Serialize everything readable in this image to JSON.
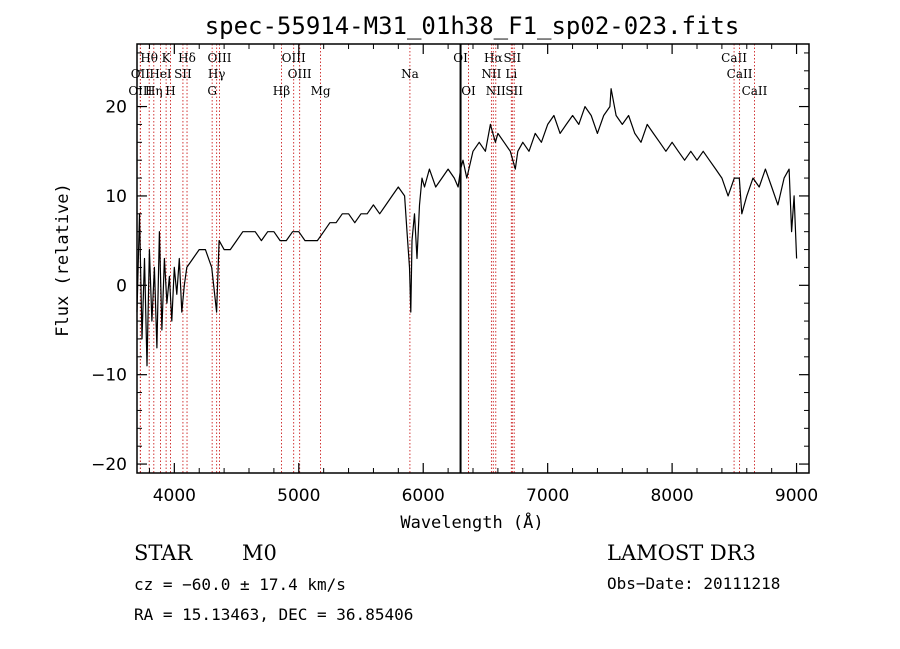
{
  "chart_data": {
    "type": "line",
    "title": "spec-55914-M31_01h38_F1_sp02-023.fits",
    "xlabel": "Wavelength (Å)",
    "ylabel": "Flux (relative)",
    "xlim": [
      3700,
      9100
    ],
    "ylim": [
      -21,
      27
    ],
    "xticks": [
      4000,
      5000,
      6000,
      7000,
      8000,
      9000
    ],
    "xtick_labels": [
      "4000",
      "5000",
      "6000",
      "7000",
      "8000",
      "9000"
    ],
    "yticks": [
      -20,
      -10,
      0,
      10,
      20
    ],
    "ytick_labels": [
      "−20",
      "−10",
      "0",
      "10",
      "20"
    ],
    "series": [
      {
        "name": "spectrum",
        "color": "#000000",
        "x": [
          3700,
          3720,
          3740,
          3760,
          3780,
          3800,
          3820,
          3840,
          3860,
          3880,
          3900,
          3920,
          3940,
          3960,
          3980,
          4000,
          4020,
          4040,
          4060,
          4080,
          4100,
          4150,
          4200,
          4250,
          4300,
          4340,
          4360,
          4400,
          4450,
          4500,
          4550,
          4600,
          4650,
          4700,
          4750,
          4800,
          4850,
          4900,
          4950,
          5000,
          5050,
          5100,
          5150,
          5200,
          5250,
          5300,
          5350,
          5400,
          5450,
          5500,
          5550,
          5600,
          5650,
          5700,
          5750,
          5800,
          5850,
          5870,
          5890,
          5900,
          5910,
          5930,
          5950,
          5970,
          5990,
          6010,
          6050,
          6100,
          6150,
          6200,
          6250,
          6280,
          6300,
          6320,
          6350,
          6400,
          6450,
          6500,
          6540,
          6560,
          6580,
          6600,
          6650,
          6700,
          6720,
          6740,
          6760,
          6800,
          6850,
          6900,
          6950,
          7000,
          7050,
          7100,
          7150,
          7200,
          7250,
          7300,
          7350,
          7400,
          7450,
          7500,
          7510,
          7550,
          7600,
          7650,
          7700,
          7750,
          7800,
          7850,
          7900,
          7950,
          8000,
          8050,
          8100,
          8150,
          8200,
          8250,
          8300,
          8350,
          8400,
          8450,
          8500,
          8540,
          8560,
          8600,
          8650,
          8700,
          8750,
          8800,
          8850,
          8900,
          8940,
          8960,
          8980,
          9000
        ],
        "y": [
          -3,
          8,
          -6,
          3,
          -9,
          4,
          -4,
          2,
          -7,
          6,
          -5,
          3,
          -2,
          1,
          -4,
          2,
          -1,
          3,
          -3,
          0,
          2,
          3,
          4,
          4,
          2,
          -3,
          5,
          4,
          4,
          5,
          6,
          6,
          6,
          5,
          6,
          6,
          5,
          5,
          6,
          6,
          5,
          5,
          5,
          6,
          7,
          7,
          8,
          8,
          7,
          8,
          8,
          9,
          8,
          9,
          10,
          11,
          10,
          6,
          2,
          -3,
          5,
          8,
          3,
          9,
          12,
          11,
          13,
          11,
          12,
          13,
          12,
          11,
          13,
          14,
          12,
          15,
          16,
          15,
          18,
          17,
          16,
          17,
          16,
          15,
          14,
          13,
          15,
          16,
          15,
          17,
          16,
          18,
          19,
          17,
          18,
          19,
          18,
          20,
          19,
          17,
          19,
          20,
          22,
          19,
          18,
          19,
          17,
          16,
          18,
          17,
          16,
          15,
          16,
          15,
          14,
          15,
          14,
          15,
          14,
          13,
          12,
          10,
          12,
          12,
          8,
          10,
          12,
          11,
          13,
          11,
          9,
          12,
          13,
          6,
          10,
          3
        ],
        "source_marker": "vertical line near 6300 Å"
      }
    ],
    "line_marks": [
      {
        "label": "Hθ",
        "x": 3798,
        "row": 1
      },
      {
        "label": "OII",
        "x": 3727,
        "row": 2
      },
      {
        "label": "OIII",
        "x": 3727,
        "row": 3
      },
      {
        "label": "K",
        "x": 3934,
        "row": 1
      },
      {
        "label": "HeI",
        "x": 3889,
        "row": 2
      },
      {
        "label": "Hη",
        "x": 3835,
        "row": 3
      },
      {
        "label": "Hδ",
        "x": 4102,
        "row": 1
      },
      {
        "label": "SII",
        "x": 4069,
        "row": 2
      },
      {
        "label": "H",
        "x": 3969,
        "row": 3
      },
      {
        "label": "OIII",
        "x": 4363,
        "row": 1
      },
      {
        "label": "Hγ",
        "x": 4340,
        "row": 2
      },
      {
        "label": "G",
        "x": 4304,
        "row": 3
      },
      {
        "label": "OIII",
        "x": 4959,
        "row": 1
      },
      {
        "label": "OIII",
        "x": 5007,
        "row": 2
      },
      {
        "label": "Hβ",
        "x": 4861,
        "row": 3
      },
      {
        "label": "Mg",
        "x": 5175,
        "row": 3
      },
      {
        "label": "Na",
        "x": 5893,
        "row": 2
      },
      {
        "label": "OI",
        "x": 6300,
        "row": 1
      },
      {
        "label": "OI",
        "x": 6364,
        "row": 3
      },
      {
        "label": "Hα",
        "x": 6563,
        "row": 1
      },
      {
        "label": "NII",
        "x": 6548,
        "row": 2
      },
      {
        "label": "NII",
        "x": 6583,
        "row": 3
      },
      {
        "label": "SII",
        "x": 6716,
        "row": 1
      },
      {
        "label": "Li",
        "x": 6708,
        "row": 2
      },
      {
        "label": "SII",
        "x": 6731,
        "row": 3
      },
      {
        "label": "CaII",
        "x": 8498,
        "row": 1
      },
      {
        "label": "CaII",
        "x": 8542,
        "row": 2
      },
      {
        "label": "CaII",
        "x": 8662,
        "row": 3
      }
    ],
    "annotations": {
      "class_label": "STAR",
      "subclass_label": "M0",
      "survey_label": "LAMOST DR3",
      "cz_text": "cz = −60.0 ± 17.4 km/s",
      "obs_date_text": "Obs−Date: 20111218",
      "coords_text": "RA =  15.13463, DEC =  36.85406"
    },
    "colors": {
      "line_marker": "#cc2222",
      "spectrum": "#000000",
      "axis": "#000000"
    }
  }
}
